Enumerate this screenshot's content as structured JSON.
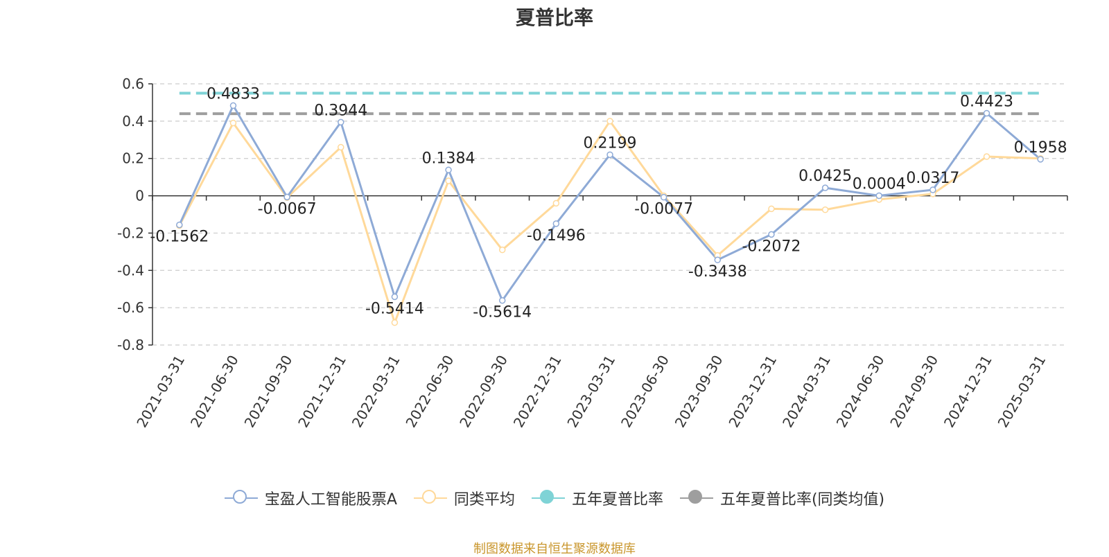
{
  "title": "夏普比率",
  "source_note": "制图数据来自恒生聚源数据库",
  "legend": [
    {
      "name": "宝盈人工智能股票A",
      "color": "#8eaad6",
      "hollow": true
    },
    {
      "name": "同类平均",
      "color": "#ffd99a",
      "hollow": true
    },
    {
      "name": "五年夏普比率",
      "color": "#7fd3d6",
      "hollow": false
    },
    {
      "name": "五年夏普比率(同类均值)",
      "color": "#9e9e9e",
      "hollow": false
    }
  ],
  "chart_data": {
    "type": "line",
    "title": "夏普比率",
    "categories": [
      "2021-03-31",
      "2021-06-30",
      "2021-09-30",
      "2021-12-31",
      "2022-03-31",
      "2022-06-30",
      "2022-09-30",
      "2022-12-31",
      "2023-03-31",
      "2023-06-30",
      "2023-09-30",
      "2023-12-31",
      "2024-03-31",
      "2024-06-30",
      "2024-09-30",
      "2024-12-31",
      "2025-03-31"
    ],
    "ylim": [
      -0.8,
      0.6
    ],
    "yticks": [
      0.6,
      0.4,
      0.2,
      0,
      -0.2,
      -0.4,
      -0.6,
      -0.8
    ],
    "grid": true,
    "legend_position": "bottom",
    "series": [
      {
        "name": "宝盈人工智能股票A",
        "color": "#8eaad6",
        "values": [
          -0.1562,
          0.4833,
          -0.0067,
          0.3944,
          -0.5414,
          0.1384,
          -0.5614,
          -0.1496,
          0.2199,
          -0.0077,
          -0.3438,
          -0.2072,
          0.0425,
          0.0004,
          0.0317,
          0.4423,
          0.1958
        ],
        "labels": [
          "-0.1562",
          "0.4833",
          "-0.0067",
          "0.3944",
          "-0.5414",
          "0.1384",
          "-0.5614",
          "-0.1496",
          "0.2199",
          "-0.0077",
          "-0.3438",
          "-0.2072",
          "0.0425",
          "0.0004",
          "0.0317",
          "0.4423",
          "0.1958"
        ]
      },
      {
        "name": "同类平均",
        "color": "#ffd99a",
        "values": [
          -0.16,
          0.39,
          -0.01,
          0.26,
          -0.68,
          0.08,
          -0.29,
          -0.04,
          0.4,
          0.0,
          -0.32,
          -0.07,
          -0.075,
          -0.02,
          0.01,
          0.21,
          0.2
        ]
      }
    ],
    "reference_lines": [
      {
        "name": "五年夏普比率",
        "value": 0.55,
        "color": "#7fd3d6"
      },
      {
        "name": "五年夏普比率(同类均值)",
        "value": 0.44,
        "color": "#9e9e9e"
      }
    ]
  }
}
